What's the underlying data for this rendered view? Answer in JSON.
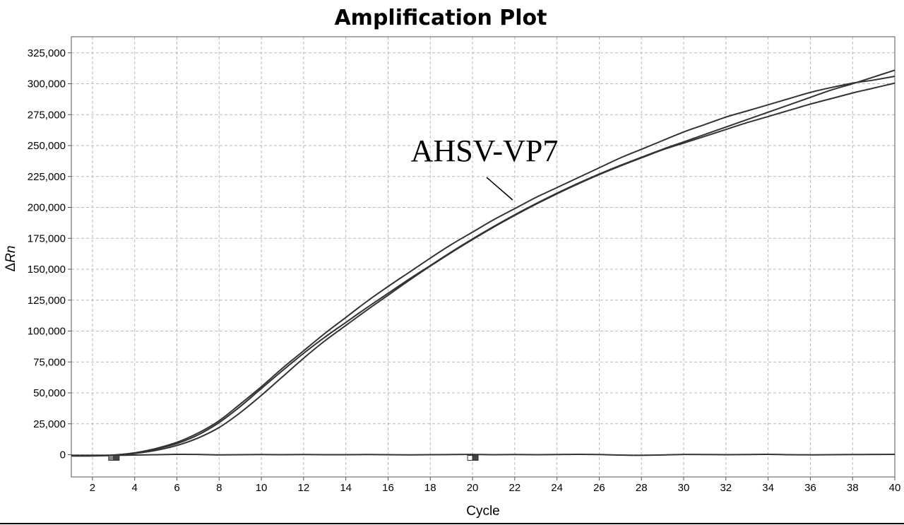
{
  "chart_data": {
    "type": "line",
    "title": "Amplification Plot",
    "xlabel": "Cycle",
    "ylabel_prefix": "Δ",
    "ylabel_italic": "Rn",
    "xlim": [
      1,
      40
    ],
    "ylim": [
      -18000,
      338000
    ],
    "xticks": [
      2,
      4,
      6,
      8,
      10,
      12,
      14,
      16,
      18,
      20,
      22,
      24,
      26,
      28,
      30,
      32,
      34,
      36,
      38,
      40
    ],
    "yticks": [
      0,
      25000,
      50000,
      75000,
      100000,
      125000,
      150000,
      175000,
      200000,
      225000,
      250000,
      275000,
      300000,
      325000
    ],
    "ytick_labels": [
      "0",
      "25,000",
      "50,000",
      "75,000",
      "100,000",
      "125,000",
      "150,000",
      "175,000",
      "200,000",
      "225,000",
      "250,000",
      "275,000",
      "300,000",
      "325,000"
    ],
    "grid": true,
    "annotation": {
      "text": "AHSV-VP7",
      "points_to": {
        "x": 21.9,
        "y": 206000
      }
    },
    "series": [
      {
        "x": [
          1,
          2,
          3,
          4,
          5,
          6,
          7,
          8,
          9,
          10,
          11,
          12,
          13,
          14,
          15,
          16,
          17,
          18,
          19,
          20,
          21,
          22,
          23,
          24,
          25,
          26,
          27,
          28,
          29,
          30,
          31,
          32,
          33,
          34,
          35,
          36,
          37,
          38,
          39,
          40
        ],
        "values": [
          -500,
          -500,
          -300,
          1500,
          5000,
          10000,
          17500,
          27500,
          41000,
          55000,
          70000,
          84000,
          98000,
          111000,
          124000,
          136000,
          147500,
          159000,
          170000,
          180000,
          190000,
          199000,
          208000,
          216000,
          224000,
          232000,
          240000,
          247000,
          254000,
          261000,
          267000,
          273000,
          278000,
          283000,
          288000,
          293000,
          297000,
          300500,
          303000,
          306000
        ]
      },
      {
        "x": [
          1,
          2,
          3,
          4,
          5,
          6,
          7,
          8,
          9,
          10,
          11,
          12,
          13,
          14,
          15,
          16,
          17,
          18,
          19,
          20,
          21,
          22,
          23,
          24,
          25,
          26,
          27,
          28,
          29,
          30,
          31,
          32,
          33,
          34,
          35,
          36,
          37,
          38,
          39,
          40
        ],
        "values": [
          -600,
          -600,
          -400,
          1300,
          4500,
          9000,
          16000,
          26000,
          39000,
          53500,
          68000,
          82000,
          95000,
          107000,
          119000,
          130500,
          142000,
          153000,
          164000,
          174500,
          184500,
          194000,
          203000,
          211500,
          219500,
          227000,
          234000,
          240500,
          247000,
          253000,
          259000,
          265000,
          271000,
          277000,
          283000,
          289000,
          295000,
          300000,
          305500,
          311000
        ]
      },
      {
        "x": [
          1,
          2,
          3,
          4,
          5,
          6,
          7,
          8,
          9,
          10,
          11,
          12,
          13,
          14,
          15,
          16,
          17,
          18,
          19,
          20,
          21,
          22,
          23,
          24,
          25,
          26,
          27,
          28,
          29,
          30,
          31,
          32,
          33,
          34,
          35,
          36,
          37,
          38,
          39,
          40
        ],
        "values": [
          -700,
          -700,
          -500,
          1000,
          3500,
          7500,
          13500,
          22000,
          34000,
          48000,
          63000,
          78000,
          92000,
          104500,
          117000,
          129000,
          141000,
          152500,
          163500,
          174000,
          184000,
          193500,
          202500,
          211000,
          219000,
          226500,
          233500,
          240000,
          246500,
          252000,
          257500,
          263000,
          268500,
          273500,
          278500,
          283500,
          288000,
          292500,
          296500,
          300500
        ]
      },
      {
        "x": [
          1,
          2,
          3,
          4,
          5,
          6,
          7,
          8,
          9,
          10,
          11,
          12,
          13,
          14,
          15,
          16,
          17,
          18,
          19,
          20,
          21,
          22,
          23,
          24,
          25,
          26,
          27,
          28,
          29,
          30,
          31,
          32,
          33,
          34,
          35,
          36,
          37,
          38,
          39,
          40
        ],
        "values": [
          -1000,
          -1000,
          -600,
          -300,
          0,
          300,
          200,
          -100,
          0,
          100,
          0,
          100,
          0,
          0,
          100,
          0,
          -100,
          0,
          100,
          200,
          0,
          100,
          0,
          100,
          300,
          100,
          -300,
          -500,
          -200,
          200,
          100,
          0,
          100,
          300,
          0,
          -100,
          0,
          100,
          200,
          300
        ]
      }
    ],
    "markers": [
      {
        "x": 3.0,
        "style": "threshold-start"
      },
      {
        "x": 20.0,
        "style": "threshold-end"
      }
    ]
  }
}
